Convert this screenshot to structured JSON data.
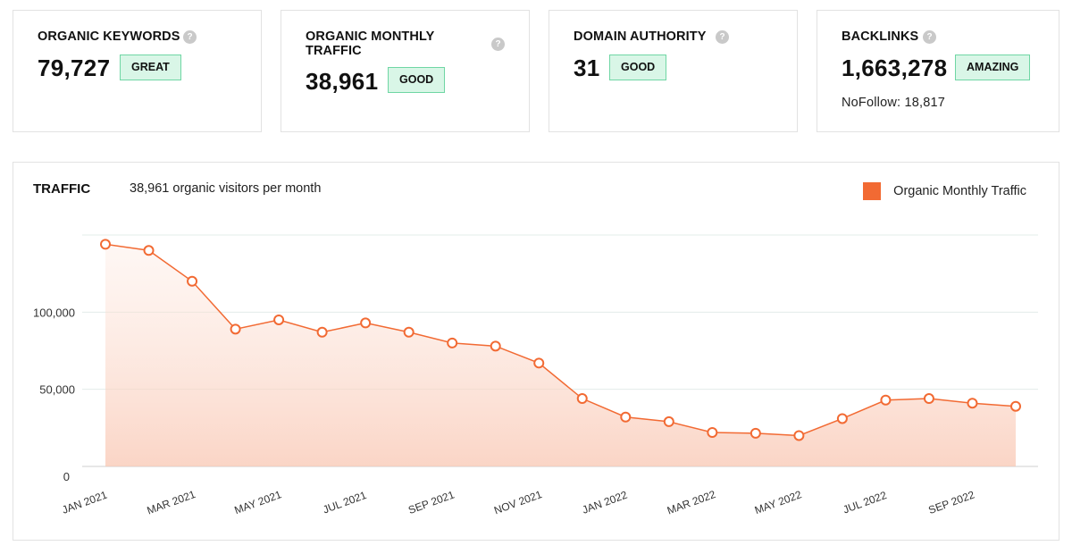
{
  "metrics": [
    {
      "title": "ORGANIC KEYWORDS",
      "value": "79,727",
      "badge": "GREAT",
      "help": "?"
    },
    {
      "title": "ORGANIC MONTHLY TRAFFIC",
      "value": "38,961",
      "badge": "GOOD",
      "help": "?"
    },
    {
      "title": "DOMAIN AUTHORITY",
      "value": "31",
      "badge": "GOOD",
      "help": "?"
    },
    {
      "title": "BACKLINKS",
      "value": "1,663,278",
      "badge": "AMAZING",
      "help": "?",
      "extra": "NoFollow: 18,817"
    }
  ],
  "colors": {
    "accent": "#f26a33",
    "badge_bg": "#d9f6e7",
    "badge_border": "#6fd6a4"
  },
  "chart_data": {
    "type": "area",
    "title": "TRAFFIC",
    "subtitle": "38,961 organic visitors per month",
    "legend": {
      "label": "Organic Monthly Traffic",
      "position": "top-right"
    },
    "ylim": [
      0,
      150000
    ],
    "yticks": [
      0,
      50000,
      100000
    ],
    "ytick_labels": [
      "0",
      "50,000",
      "100,000"
    ],
    "grid": true,
    "x_tick_labels": [
      "JAN 2021",
      "MAR 2021",
      "MAY 2021",
      "JUL 2021",
      "SEP 2021",
      "NOV 2021",
      "JAN 2022",
      "MAR 2022",
      "MAY 2022",
      "JUL 2022",
      "SEP 2022"
    ],
    "x": [
      "2021-01",
      "2021-02",
      "2021-03",
      "2021-04",
      "2021-05",
      "2021-06",
      "2021-07",
      "2021-08",
      "2021-09",
      "2021-10",
      "2021-11",
      "2021-12",
      "2022-01",
      "2022-02",
      "2022-03",
      "2022-04",
      "2022-05",
      "2022-06",
      "2022-07",
      "2022-08",
      "2022-09",
      "2022-10"
    ],
    "series": [
      {
        "name": "Organic Monthly Traffic",
        "values": [
          144000,
          140000,
          120000,
          89000,
          95000,
          87000,
          93000,
          87000,
          80000,
          78000,
          67000,
          44000,
          32000,
          29000,
          22000,
          21500,
          20000,
          31000,
          43000,
          44000,
          41000,
          38961
        ]
      }
    ]
  }
}
